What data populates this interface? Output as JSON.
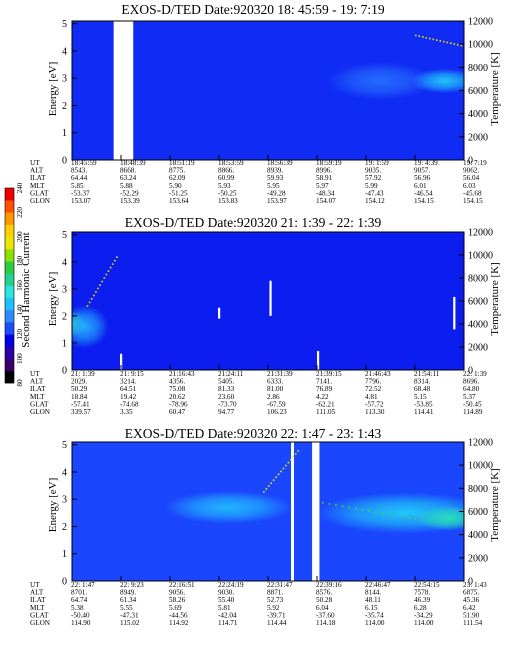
{
  "colorbar": {
    "label": "Second Harmonic Current",
    "ticks": [
      "80",
      "100",
      "120",
      "140",
      "160",
      "180",
      "200",
      "220",
      "240"
    ],
    "colors": [
      "#000000",
      "#3a006a",
      "#2a00a8",
      "#0000e6",
      "#1c4cff",
      "#2d8bff",
      "#1fc0ff",
      "#28e6e0",
      "#26d18f",
      "#2ecc40",
      "#8ee000",
      "#e8e800",
      "#ffd000",
      "#ff9800",
      "#ff5000",
      "#ee0000"
    ]
  },
  "panels": [
    {
      "title": "EXOS-D/TED   Date:920320  18: 45:59 - 19: 7:19",
      "ylabel_left": "Energy [eV]",
      "ylabel_right": "Temperature [K]",
      "eph_rows": [
        "UT",
        "ALT",
        "ILAT",
        "MLT",
        "GLAT",
        "GLON"
      ],
      "eph_cols": [
        [
          "18:45:59",
          "8543.",
          "64.44",
          "5.85",
          "-53.37",
          "153.07"
        ],
        [
          "18:48:39",
          "8668.",
          "63.24",
          "5.88",
          "-52.29",
          "153.39"
        ],
        [
          "18:51:19",
          "8775.",
          "62.09",
          "5.90",
          "-51.25",
          "153.64"
        ],
        [
          "18:53:59",
          "8866.",
          "60.99",
          "5.93",
          "-50.25",
          "153.83"
        ],
        [
          "18:56:39",
          "8939.",
          "59.93",
          "5.95",
          "-49.28",
          "153.97"
        ],
        [
          "18:59:19",
          "8996.",
          "58.91",
          "5.97",
          "-48.34",
          "154.07"
        ],
        [
          "19: 1:59",
          "9035.",
          "57.92",
          "5.99",
          "-47.43",
          "154.12"
        ],
        [
          "19: 4:39",
          "9057.",
          "56.96",
          "6.01",
          "-46.54",
          "154.15"
        ],
        [
          "19: 7:19",
          "9062.",
          "56.04",
          "6.03",
          "-45.68",
          "154.15"
        ]
      ]
    },
    {
      "title": "EXOS-D/TED   Date:920320  21: 1:39 - 22: 1:39",
      "ylabel_left": "Energy [eV]",
      "ylabel_right": "Temperature [K]",
      "eph_rows": [
        "UT",
        "ALT",
        "ILAT",
        "MLT",
        "GLAT",
        "GLON"
      ],
      "eph_cols": [
        [
          "21: 1:39",
          "2029.",
          "50.29",
          "18.84",
          "-57.41",
          "339.57"
        ],
        [
          "21: 9:15",
          "3214.",
          "64.51",
          "19.42",
          "-74.68",
          "3.35"
        ],
        [
          "21:16:43",
          "4356.",
          "75.08",
          "20.62",
          "-78.96",
          "60.47"
        ],
        [
          "21:24:11",
          "5405.",
          "81.33",
          "23.60",
          "-73.70",
          "94.77"
        ],
        [
          "21:31:39",
          "6333.",
          "81.00",
          "2.86",
          "-67.59",
          "106.23"
        ],
        [
          "21:39:15",
          "7141.",
          "76.89",
          "4.22",
          "-62.21",
          "111.05"
        ],
        [
          "21:46:43",
          "7796.",
          "72.52",
          "4.81",
          "-57.72",
          "113.30"
        ],
        [
          "21:54:11",
          "8314.",
          "68.48",
          "5.15",
          "-53.85",
          "114.41"
        ],
        [
          "22: 1:39",
          "8696.",
          "64.80",
          "5.37",
          "-50.45",
          "114.89"
        ]
      ]
    },
    {
      "title": "EXOS-D/TED   Date:920320  22: 1:47 - 23: 1:43",
      "ylabel_left": "Energy [eV]",
      "ylabel_right": "Temperature [K]",
      "eph_rows": [
        "UT",
        "ALT",
        "ILAT",
        "MLT",
        "GLAT",
        "GLON"
      ],
      "eph_cols": [
        [
          "22: 1:47",
          "8701.",
          "64.74",
          "5.38",
          "-50.40",
          "114.90"
        ],
        [
          "22: 9:23",
          "8949.",
          "61.34",
          "5.55",
          "-47.31",
          "115.02"
        ],
        [
          "22:16:51",
          "9056.",
          "58.26",
          "5.69",
          "-44.56",
          "114.92"
        ],
        [
          "22:24:19",
          "9030.",
          "55.40",
          "5.81",
          "-42.04",
          "114.71"
        ],
        [
          "22:31:47",
          "8871.",
          "52.73",
          "5.92",
          "-39.71",
          "114.44"
        ],
        [
          "22:39:16",
          "8576.",
          "50.28",
          "6.04",
          "-37.60",
          "114.18"
        ],
        [
          "22:46:47",
          "8144.",
          "48.11",
          "6.15",
          "-35.74",
          "114.00"
        ],
        [
          "22:54:15",
          "7578.",
          "46.39",
          "6.28",
          "-34.29",
          "114.00"
        ],
        [
          "23: 1:43",
          "6875.",
          "45.36",
          "6.42",
          "51.90",
          "111.54"
        ]
      ]
    }
  ],
  "chart_data": [
    {
      "type": "heatmap",
      "title": "EXOS-D/TED   Date:920320  18: 45:59 - 19: 7:19",
      "ylabel": "Energy [eV]",
      "y2label": "Temperature [K]",
      "ylim": [
        0,
        5.1
      ],
      "y2lim": [
        0,
        12000
      ],
      "yticks": [
        0,
        1,
        2,
        3,
        4,
        5
      ],
      "y2ticks": [
        0,
        2000,
        4000,
        6000,
        8000,
        10000,
        12000
      ],
      "x": [
        "18:45:59",
        "18:48:39",
        "18:51:19",
        "18:53:59",
        "18:56:39",
        "18:59:19",
        "19: 1:59",
        "19: 4:39",
        "19: 7:19"
      ],
      "background_level": 118,
      "features": [
        {
          "kind": "data_gap",
          "x_range": [
            0.85,
            1.25
          ]
        },
        {
          "kind": "blob",
          "x": 7.6,
          "energy": 2.9,
          "sx": 0.7,
          "se": 0.45,
          "level": 145
        },
        {
          "kind": "blob",
          "x": 6.3,
          "energy": 2.9,
          "sx": 1.1,
          "se": 0.7,
          "level": 128
        },
        {
          "kind": "trace",
          "x_range": [
            7.0,
            8.0
          ],
          "energy_range": [
            4.6,
            4.2
          ],
          "level": 200
        }
      ]
    },
    {
      "type": "heatmap",
      "title": "EXOS-D/TED   Date:920320  21: 1:39 - 22: 1:39",
      "ylabel": "Energy [eV]",
      "y2label": "Temperature [K]",
      "ylim": [
        0,
        5.1
      ],
      "y2lim": [
        0,
        12000
      ],
      "yticks": [
        0,
        1,
        2,
        3,
        4,
        5
      ],
      "y2ticks": [
        0,
        2000,
        4000,
        6000,
        8000,
        10000,
        12000
      ],
      "x": [
        "21: 1:39",
        "21: 9:15",
        "21:16:43",
        "21:24:11",
        "21:31:39",
        "21:39:15",
        "21:46:43",
        "21:54:11",
        "22: 1:39"
      ],
      "background_level": 116,
      "features": [
        {
          "kind": "blob",
          "x": 0.05,
          "energy": 1.7,
          "sx": 0.25,
          "se": 0.45,
          "level": 165
        },
        {
          "kind": "blob",
          "x": 0.25,
          "energy": 1.6,
          "sx": 0.5,
          "se": 0.8,
          "level": 140
        },
        {
          "kind": "trace",
          "x_range": [
            0.3,
            0.9
          ],
          "energy_range": [
            2.4,
            4.2
          ],
          "level": 200
        },
        {
          "kind": "spike",
          "x": 1.0,
          "energy_range": [
            0.0,
            0.6
          ]
        },
        {
          "kind": "spike",
          "x": 3.0,
          "energy_range": [
            1.9,
            2.3
          ]
        },
        {
          "kind": "spike",
          "x": 4.05,
          "energy_range": [
            2.0,
            3.3
          ]
        },
        {
          "kind": "spike",
          "x": 5.02,
          "energy_range": [
            0.0,
            0.7
          ]
        },
        {
          "kind": "spike",
          "x": 7.8,
          "energy_range": [
            1.5,
            2.7
          ]
        }
      ]
    },
    {
      "type": "heatmap",
      "title": "EXOS-D/TED   Date:920320  22: 1:47 - 23: 1:43",
      "ylabel": "Energy [eV]",
      "y2label": "Temperature [K]",
      "ylim": [
        0,
        5.1
      ],
      "y2lim": [
        0,
        12000
      ],
      "yticks": [
        0,
        1,
        2,
        3,
        4,
        5
      ],
      "y2ticks": [
        0,
        2000,
        4000,
        6000,
        8000,
        10000,
        12000
      ],
      "x": [
        "22: 1:47",
        "22: 9:23",
        "22:16:51",
        "22:24:19",
        "22:31:47",
        "22:39:16",
        "22:46:47",
        "22:54:15",
        "23: 1:43"
      ],
      "background_level": 122,
      "features": [
        {
          "kind": "data_gap",
          "x_range": [
            4.47,
            4.53
          ]
        },
        {
          "kind": "data_gap",
          "x_range": [
            4.9,
            5.05
          ]
        },
        {
          "kind": "blob",
          "x": 3.2,
          "energy": 2.7,
          "sx": 1.3,
          "se": 0.6,
          "level": 142
        },
        {
          "kind": "blob",
          "x": 6.8,
          "energy": 2.5,
          "sx": 1.8,
          "se": 0.75,
          "level": 146
        },
        {
          "kind": "blob",
          "x": 7.7,
          "energy": 2.3,
          "sx": 0.7,
          "se": 0.45,
          "level": 160
        },
        {
          "kind": "trace",
          "x_range": [
            3.9,
            4.6
          ],
          "energy_range": [
            3.3,
            4.8
          ],
          "level": 200
        },
        {
          "kind": "trace",
          "x_range": [
            5.1,
            7.0
          ],
          "energy_range": [
            2.9,
            2.3
          ],
          "level": 180
        }
      ]
    }
  ]
}
